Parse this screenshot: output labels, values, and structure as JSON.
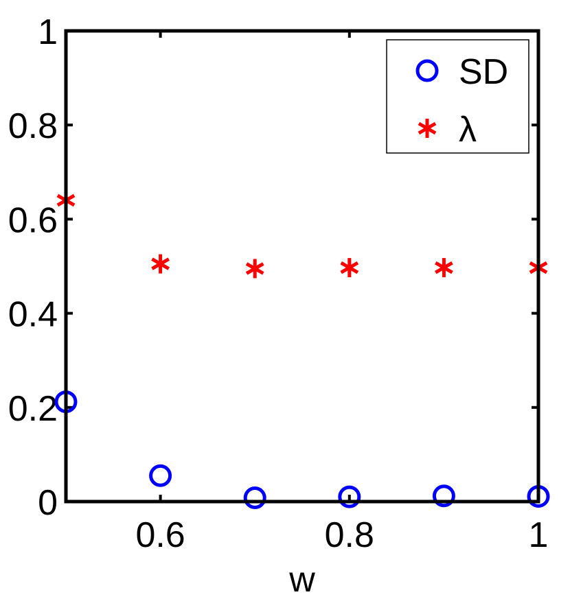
{
  "chart_data": {
    "type": "scatter",
    "title": "",
    "xlabel": "w",
    "ylabel": "",
    "xlim": [
      0.5,
      1.0
    ],
    "ylim": [
      0,
      1
    ],
    "xticks": [
      0.6,
      0.8,
      1.0
    ],
    "xtick_labels": [
      "0.6",
      "0.8",
      "1"
    ],
    "yticks": [
      0,
      0.2,
      0.4,
      0.6,
      0.8,
      1.0
    ],
    "ytick_labels": [
      "0",
      "0.2",
      "0.4",
      "0.6",
      "0.8",
      "1"
    ],
    "grid": false,
    "legend_position": "top-right",
    "series": [
      {
        "name": "SD",
        "marker": "circle",
        "color": "#0000ff",
        "x": [
          0.5,
          0.6,
          0.7,
          0.8,
          0.9,
          1.0
        ],
        "y": [
          0.212,
          0.055,
          0.008,
          0.01,
          0.012,
          0.011
        ]
      },
      {
        "name": "λ",
        "marker": "asterisk",
        "color": "#ff0000",
        "x": [
          0.5,
          0.6,
          0.7,
          0.8,
          0.9,
          1.0
        ],
        "y": [
          0.64,
          0.505,
          0.495,
          0.497,
          0.497,
          0.497
        ]
      }
    ]
  }
}
